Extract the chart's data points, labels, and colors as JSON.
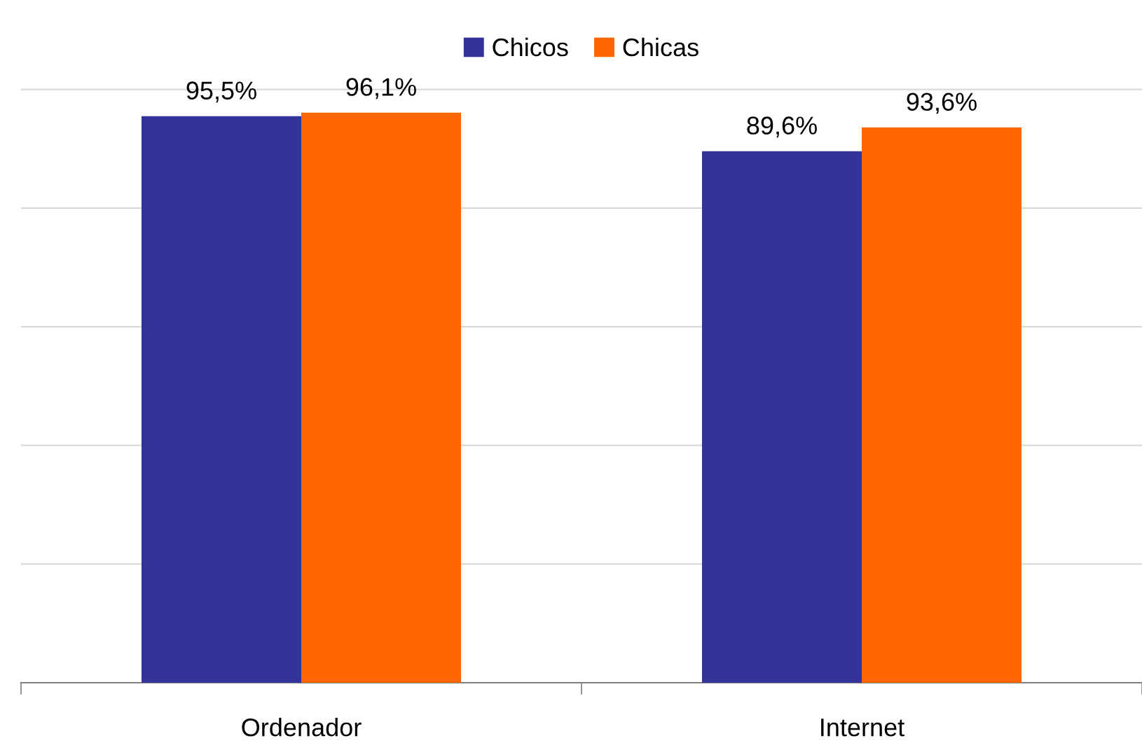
{
  "chart_data": {
    "type": "bar",
    "categories": [
      "Ordenador",
      "Internet"
    ],
    "series": [
      {
        "name": "Chicos",
        "color": "#333399",
        "values": [
          95.5,
          89.6
        ],
        "value_labels": [
          "95,5%",
          "89,6%"
        ]
      },
      {
        "name": "Chicas",
        "color": "#ff6600",
        "values": [
          96.1,
          93.6
        ],
        "value_labels": [
          "96,1%",
          "93,6%"
        ]
      }
    ],
    "tick_labels": "x",
    "grid": "y",
    "legend": "top"
  }
}
